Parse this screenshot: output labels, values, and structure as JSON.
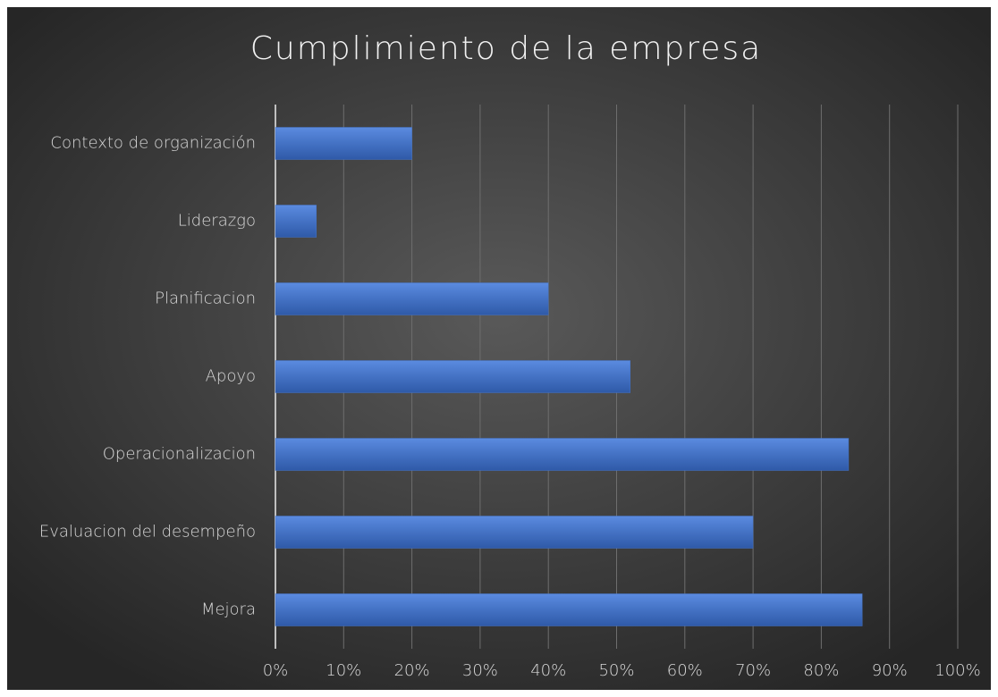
{
  "chart_data": {
    "type": "hbar",
    "title": "Cumplimiento de la empresa",
    "categories": [
      "Contexto de organización",
      "Liderazgo",
      "Planificacion",
      "Apoyo",
      "Operacionalizacion",
      "Evaluacion del desempeño",
      "Mejora"
    ],
    "values": [
      20,
      6,
      40,
      52,
      84,
      70,
      86
    ],
    "color": "#4472c4",
    "xlim": [
      0,
      100
    ],
    "xticks": [
      {
        "value": 0,
        "label": "0%"
      },
      {
        "value": 10,
        "label": "10%"
      },
      {
        "value": 20,
        "label": "20%"
      },
      {
        "value": 30,
        "label": "30%"
      },
      {
        "value": 40,
        "label": "40%"
      },
      {
        "value": 50,
        "label": "50%"
      },
      {
        "value": 60,
        "label": "60%"
      },
      {
        "value": 70,
        "label": "70%"
      },
      {
        "value": 80,
        "label": "80%"
      },
      {
        "value": 90,
        "label": "90%"
      },
      {
        "value": 100,
        "label": "100%"
      }
    ],
    "grid": true
  }
}
